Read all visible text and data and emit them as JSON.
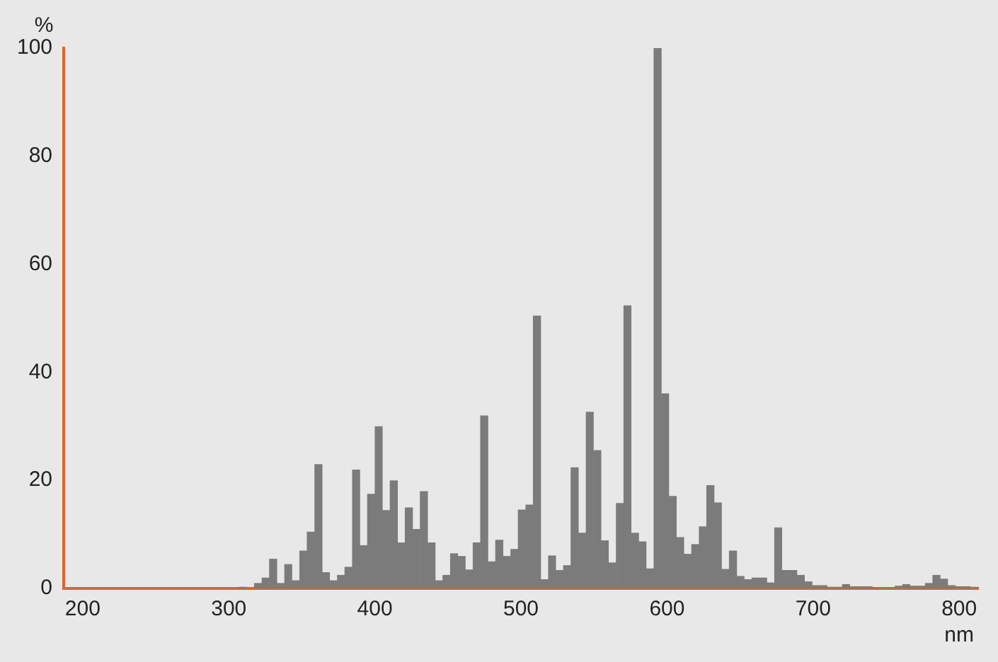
{
  "chart_data": {
    "type": "histogram",
    "ylabel": "%",
    "xlabel": "nm",
    "bins": [
      307.0,
      312.2,
      317.3,
      322.5,
      327.6,
      332.8,
      338.0,
      343.1,
      348.3,
      353.4,
      358.6,
      363.8,
      368.9,
      374.1,
      379.2,
      384.4,
      389.6,
      394.7,
      399.9,
      405.0,
      410.2,
      415.4,
      420.5,
      425.7,
      430.8,
      436.0,
      441.2,
      446.3,
      451.5,
      456.6,
      461.8,
      467.0,
      472.1,
      477.3,
      482.4,
      487.6,
      492.8,
      497.9,
      503.1,
      508.2,
      513.4,
      518.6,
      523.7,
      528.9,
      534.0,
      539.2,
      544.4,
      549.5,
      554.7,
      559.8,
      565.0,
      570.2,
      575.3,
      580.5,
      585.6,
      590.8,
      596.0,
      601.1,
      606.3,
      611.4,
      616.6,
      621.8,
      626.9,
      632.1,
      637.2,
      642.4,
      647.6,
      652.7,
      657.9,
      663.0,
      668.2,
      673.4,
      678.5,
      683.7,
      688.8,
      694.0,
      699.2,
      704.3,
      709.5,
      714.6,
      719.8,
      725.0,
      730.1,
      735.3,
      740.4,
      745.6,
      750.8,
      755.9,
      761.1,
      766.2,
      771.4,
      776.6,
      781.7,
      786.9,
      792.0,
      797.2,
      802.4,
      807.5,
      812.7
    ],
    "values": [
      0.3,
      0,
      1,
      2,
      5.5,
      1,
      4.5,
      1.5,
      7,
      10.5,
      23,
      3,
      1.5,
      2.5,
      4,
      22,
      8,
      17.5,
      30,
      14.5,
      20,
      8.5,
      15,
      11,
      18,
      8.5,
      1.5,
      2.5,
      6.5,
      6,
      3.5,
      8.5,
      32,
      5,
      9,
      6,
      7.3,
      14.6,
      15.5,
      50.5,
      1.7,
      6.1,
      3.4,
      4.3,
      22.4,
      10.3,
      32.7,
      25.6,
      8.9,
      4.8,
      15.8,
      52.4,
      10.3,
      8.7,
      3.7,
      100,
      36.1,
      17.1,
      9.5,
      6.4,
      8.2,
      11.5,
      19.1,
      15.9,
      3.6,
      7,
      2.3,
      1.7,
      2,
      2,
      1.1,
      11.3,
      3.4,
      3.4,
      2.5,
      1.3,
      0.6,
      0.6,
      0.3,
      0.3,
      0.8,
      0.4,
      0.4,
      0.4,
      0.2,
      0.2,
      0.2,
      0.5,
      0.8,
      0.5,
      0.5,
      1,
      2.5,
      1.8,
      0.6,
      0.4,
      0.4,
      0.3
    ],
    "color": "#7b7b7b",
    "xlim": [
      187,
      813
    ],
    "xticks": [
      200,
      300,
      400,
      500,
      600,
      700,
      800
    ],
    "ylim": [
      0,
      100
    ],
    "yticks": [
      0,
      20,
      40,
      60,
      80,
      100
    ],
    "grid": false,
    "legend": false
  }
}
